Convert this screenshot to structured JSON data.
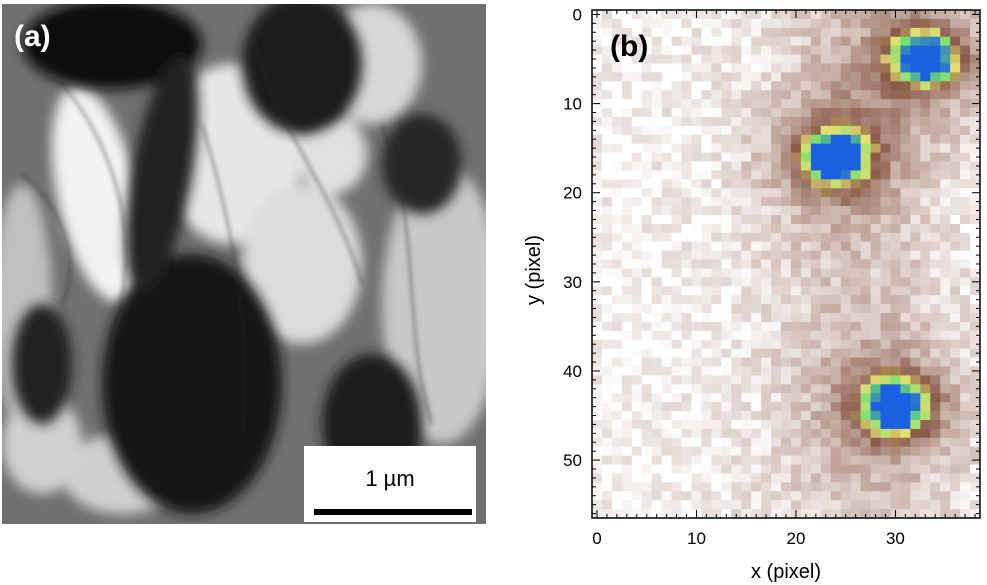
{
  "panel_a": {
    "label": "(a)",
    "scale_bar": {
      "text": "1 µm",
      "length_um": 1
    }
  },
  "panel_b": {
    "label": "(b)"
  },
  "chart_data": {
    "type": "heatmap",
    "xlabel": "x (pixel)",
    "ylabel": "y (pixel)",
    "xlim": [
      -0.5,
      38.5
    ],
    "ylim": [
      56.5,
      -0.5
    ],
    "x_ticks": [
      0,
      10,
      20,
      30
    ],
    "y_ticks": [
      0,
      10,
      20,
      30,
      40,
      50
    ],
    "grid": false,
    "colors": {
      "low": "#ffffff",
      "mid": "#8a5a48",
      "high": [
        "#e8e070",
        "#70e070",
        "#1a60e0"
      ]
    },
    "hot_regions": [
      {
        "x": 33,
        "y": 5,
        "level": "high"
      },
      {
        "x": 24,
        "y": 16,
        "level": "high"
      },
      {
        "x": 30,
        "y": 44,
        "level": "high"
      }
    ]
  }
}
